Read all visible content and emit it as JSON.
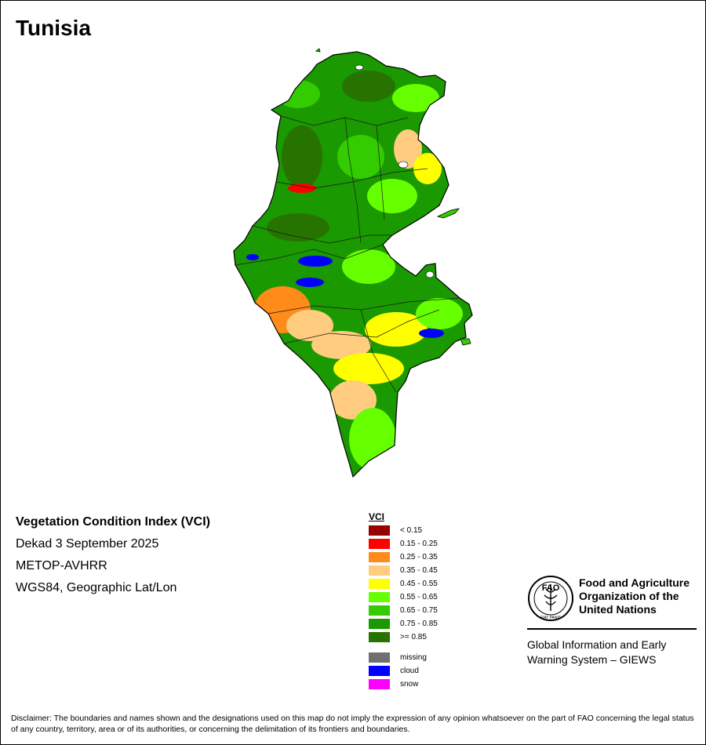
{
  "title": "Tunisia",
  "info": {
    "index_name": "Vegetation Condition Index (VCI)",
    "period": "Dekad 3 September 2025",
    "sensor": "METOP-AVHRR",
    "projection": "WGS84, Geographic Lat/Lon"
  },
  "legend": {
    "title": "VCI",
    "classes": [
      {
        "label": "< 0.15",
        "color": "#990000"
      },
      {
        "label": "0.15 - 0.25",
        "color": "#ff0000"
      },
      {
        "label": "0.25 - 0.35",
        "color": "#ff8c1a"
      },
      {
        "label": "0.35 - 0.45",
        "color": "#ffcc80"
      },
      {
        "label": "0.45 - 0.55",
        "color": "#ffff00"
      },
      {
        "label": "0.55 - 0.65",
        "color": "#66ff00"
      },
      {
        "label": "0.65 - 0.75",
        "color": "#33cc00"
      },
      {
        "label": "0.75 - 0.85",
        "color": "#1a9900"
      },
      {
        "label": ">= 0.85",
        "color": "#267300"
      }
    ],
    "extra": [
      {
        "label": "missing",
        "color": "#707070"
      },
      {
        "label": "cloud",
        "color": "#0000ff"
      },
      {
        "label": "snow",
        "color": "#ff00ff"
      }
    ]
  },
  "fao": {
    "name_line1": "Food and Agriculture",
    "name_line2": "Organization of the",
    "name_line3": "United Nations",
    "giews_line1": "Global Information and Early",
    "giews_line2": "Warning System – GIEWS",
    "logo_text": "FAO",
    "logo_motto": "FIAT PANIS"
  },
  "disclaimer": "Disclaimer: The boundaries and names shown and the designations used on this map do not imply the expression of any opinion whatsoever on the part of FAO concerning the legal status of any country, territory, area or of its authorities, or concerning the delimitation of its frontiers and boundaries."
}
